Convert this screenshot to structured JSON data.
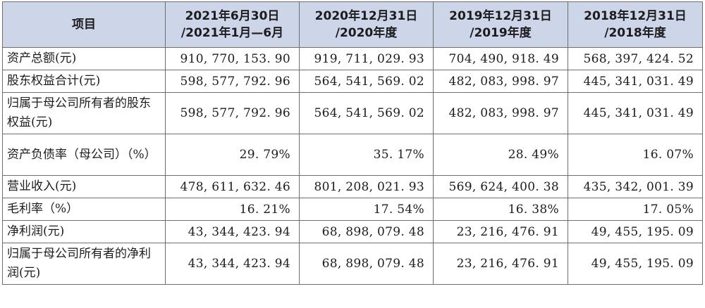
{
  "table": {
    "header": {
      "item": "项目",
      "periods": [
        {
          "line1": "2021年6月30日",
          "line2": "/2021年1月—6月"
        },
        {
          "line1": "2020年12月31日",
          "line2": "/2020年度"
        },
        {
          "line1": "2019年12月31日",
          "line2": "/2019年度"
        },
        {
          "line1": "2018年12月31日",
          "line2": "/2018年度"
        }
      ]
    },
    "rows": [
      {
        "label": "资产总额(元)",
        "values": [
          "910, 770, 153. 90",
          "919, 711, 029. 93",
          "704, 490, 918. 49",
          "568, 397, 424. 52"
        ]
      },
      {
        "label": "股东权益合计(元)",
        "values": [
          "598, 577, 792. 96",
          "564, 541, 569. 02",
          "482, 083, 998. 97",
          "445, 341, 031. 49"
        ]
      },
      {
        "label": "归属于母公司所有者的股东权益(元)",
        "values": [
          "598, 577, 792. 96",
          "564, 541, 569. 02",
          "482, 083, 998. 97",
          "445, 341, 031. 49"
        ]
      },
      {
        "label": "资产负债率（母公司）（%）",
        "values": [
          "29. 79%",
          "35. 17%",
          "28. 49%",
          "16. 07%"
        ]
      },
      {
        "label": "营业收入(元)",
        "values": [
          "478, 611, 632. 46",
          "801, 208, 021. 93",
          "569, 624, 400. 38",
          "435, 342, 001. 39"
        ]
      },
      {
        "label": "毛利率（%）",
        "values": [
          "16. 21%",
          "17. 54%",
          "16. 38%",
          "17. 05%"
        ]
      },
      {
        "label": "净利润(元)",
        "values": [
          "43, 344, 423. 94",
          "68, 898, 079. 48",
          "23, 216, 476. 91",
          "49, 455, 195. 09"
        ]
      },
      {
        "label": "归属于母公司所有者的净利润(元)",
        "values": [
          "43, 344, 423. 94",
          "68, 898, 079. 48",
          "23, 216, 476. 91",
          "49, 455, 195. 09"
        ]
      }
    ]
  }
}
